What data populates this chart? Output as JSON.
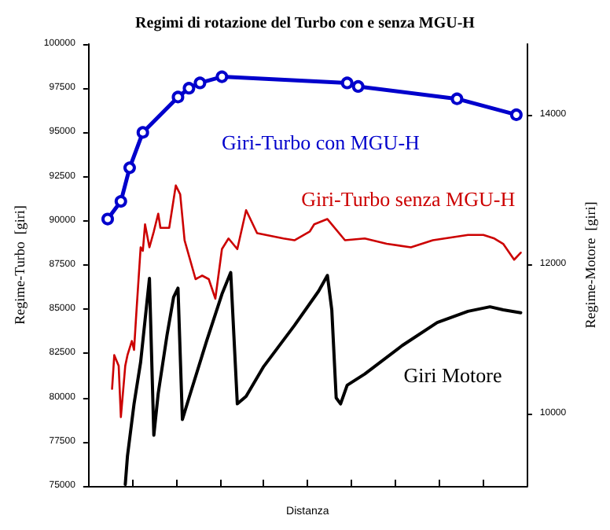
{
  "chart_data": {
    "type": "line",
    "title": "Regimi di rotazione del Turbo con e senza MGU-H",
    "xlabel": "Distanza",
    "ylabel": "Regime-Turbo  [giri]",
    "y2label": "Regime-Motore  [giri]",
    "categories": [
      null,
      null,
      null,
      null,
      null,
      null,
      null,
      null,
      null,
      null,
      null,
      null,
      null,
      null,
      null,
      null,
      null,
      null,
      null,
      null,
      null,
      null,
      null,
      null,
      null,
      null,
      null,
      null,
      null,
      null,
      null,
      null,
      null,
      null,
      null,
      null,
      null,
      null,
      null,
      null,
      null,
      null,
      null,
      null,
      null,
      null,
      null,
      null,
      null,
      null,
      null,
      null,
      null,
      null,
      null,
      null,
      null,
      null,
      null,
      null,
      null,
      null,
      null,
      null,
      null,
      null,
      null,
      null,
      null,
      null,
      null,
      null,
      null,
      null,
      null,
      null,
      null,
      null,
      null,
      null,
      null,
      null,
      null,
      null,
      null,
      null,
      null,
      null,
      null,
      null,
      null,
      null,
      null,
      null,
      null,
      null,
      null,
      null,
      null,
      null,
      null,
      null,
      null,
      null,
      null,
      null,
      null,
      null,
      null,
      null,
      null,
      null,
      null,
      null,
      null,
      null,
      null,
      null,
      null,
      null,
      null,
      null,
      null,
      null,
      null,
      null,
      null,
      null,
      null,
      null,
      null,
      null,
      null,
      null,
      null,
      null,
      null,
      null,
      null,
      null,
      null,
      null,
      null,
      null,
      null,
      null,
      null,
      null,
      null,
      null,
      null,
      null,
      null,
      null,
      null,
      null,
      null,
      null,
      null,
      null,
      null,
      null,
      null,
      null,
      null,
      null,
      null,
      null,
      null,
      null,
      null,
      null,
      null,
      null,
      null,
      null,
      null,
      null,
      null,
      null,
      null,
      null,
      null,
      null,
      null,
      null,
      null,
      null,
      null,
      null,
      null,
      null,
      null,
      null,
      null,
      null,
      null,
      null,
      null,
      null,
      null
    ],
    "ylim": [
      75000,
      100000
    ],
    "yticks": [
      75000,
      77500,
      80000,
      82500,
      85000,
      87500,
      90000,
      92500,
      95000,
      97500,
      100000
    ],
    "y2lim": [
      9030,
      14950
    ],
    "y2ticks": [
      10000,
      12000,
      14000
    ],
    "grid": false,
    "line_style": "solid",
    "series": [
      {
        "name": "Giri-Turbo con MGU-H",
        "color": "#0000cc",
        "marker": "circle",
        "values": [
          null,
          null,
          null,
          null,
          null,
          null,
          null,
          null,
          null,
          90100,
          null,
          null,
          null,
          null,
          null,
          91100,
          null,
          null,
          null,
          93000,
          null,
          null,
          null,
          null,
          null,
          95000,
          null,
          null,
          null,
          null,
          null,
          null,
          null,
          null,
          null,
          null,
          null,
          null,
          null,
          null,
          null,
          97000,
          null,
          null,
          null,
          null,
          97500,
          null,
          null,
          null,
          null,
          97800,
          null,
          null,
          null,
          null,
          null,
          null,
          null,
          null,
          null,
          98150,
          null,
          null,
          null,
          null,
          null,
          null,
          null,
          null,
          null,
          null,
          null,
          null,
          null,
          null,
          null,
          null,
          null,
          null,
          null,
          null,
          null,
          null,
          null,
          null,
          null,
          null,
          null,
          null,
          null,
          null,
          null,
          null,
          null,
          null,
          null,
          null,
          null,
          null,
          null,
          null,
          null,
          null,
          null,
          null,
          null,
          null,
          null,
          null,
          null,
          null,
          null,
          null,
          null,
          null,
          null,
          null,
          97800,
          null,
          null,
          null,
          null,
          97600,
          null,
          null,
          null,
          null,
          null,
          null,
          null,
          null,
          null,
          null,
          null,
          null,
          null,
          null,
          null,
          null,
          null,
          null,
          null,
          null,
          null,
          null,
          null,
          null,
          null,
          null,
          null,
          null,
          null,
          null,
          null,
          null,
          null,
          null,
          null,
          null,
          null,
          null,
          null,
          null,
          null,
          null,
          null,
          null,
          96900,
          null,
          null,
          null,
          null,
          null,
          null,
          null,
          null,
          null,
          null,
          null,
          null,
          null,
          null,
          null,
          null,
          null,
          null,
          null,
          null,
          null,
          null,
          null,
          null,
          null,
          null,
          96000,
          null,
          null,
          null,
          null,
          null
        ]
      },
      {
        "name": "Giri-Turbo senza MGU-H",
        "color": "#cc0000",
        "marker": "none",
        "values": [
          null,
          null,
          null,
          null,
          null,
          null,
          null,
          null,
          null,
          null,
          null,
          80500,
          82400,
          null,
          81800,
          78900,
          null,
          81800,
          82400,
          null,
          83200,
          82700,
          84700,
          null,
          88500,
          88300,
          89800,
          null,
          88500,
          null,
          89400,
          null,
          90400,
          89600,
          null,
          null,
          null,
          89600,
          null,
          null,
          92000,
          null,
          91500,
          null,
          88900,
          null,
          null,
          null,
          null,
          86700,
          null,
          null,
          86900,
          null,
          null,
          86700,
          null,
          null,
          85600,
          null,
          null,
          88400,
          null,
          null,
          89000,
          null,
          null,
          null,
          88400,
          null,
          null,
          null,
          90600,
          null,
          null,
          null,
          null,
          89300,
          null,
          null,
          null,
          null,
          null,
          null,
          null,
          null,
          null,
          null,
          null,
          89000,
          null,
          null,
          null,
          null,
          88900,
          null,
          null,
          null,
          null,
          null,
          null,
          89400,
          null,
          89800,
          null,
          null,
          null,
          null,
          null,
          90100,
          null,
          null,
          null,
          null,
          null,
          null,
          null,
          88900,
          null,
          null,
          null,
          null,
          null,
          null,
          null,
          null,
          89000,
          null,
          null,
          null,
          null,
          null,
          null,
          null,
          null,
          null,
          88700,
          null,
          null,
          null,
          null,
          null,
          null,
          null,
          null,
          null,
          null,
          88500,
          null,
          null,
          null,
          null,
          null,
          null,
          null,
          null,
          null,
          88900,
          null,
          null,
          null,
          null,
          null,
          null,
          null,
          null,
          null,
          null,
          null,
          null,
          null,
          null,
          null,
          89200,
          null,
          null,
          null,
          null,
          null,
          null,
          89200,
          null,
          null,
          null,
          null,
          89000,
          null,
          null,
          null,
          88700,
          null,
          null,
          null,
          null,
          87800,
          null,
          null,
          88200,
          null,
          null,
          null
        ]
      },
      {
        "name": "Giri Motore",
        "color": "#000000",
        "marker": "none",
        "axis": "y2",
        "values": [
          null,
          null,
          null,
          null,
          null,
          null,
          null,
          null,
          null,
          null,
          null,
          null,
          null,
          null,
          null,
          null,
          null,
          9050,
          9430,
          null,
          null,
          10130,
          null,
          null,
          10690,
          null,
          null,
          null,
          11810,
          null,
          9710,
          null,
          10270,
          null,
          null,
          null,
          11050,
          null,
          null,
          11560,
          null,
          11680,
          null,
          9920,
          null,
          null,
          10210,
          null,
          null,
          null,
          null,
          null,
          null,
          null,
          10970,
          null,
          null,
          null,
          null,
          null,
          null,
          11600,
          null,
          null,
          null,
          11890,
          null,
          null,
          10130,
          null,
          null,
          null,
          10230,
          null,
          null,
          null,
          null,
          null,
          null,
          null,
          10630,
          null,
          null,
          null,
          null,
          null,
          null,
          null,
          null,
          null,
          null,
          null,
          null,
          null,
          11180,
          null,
          null,
          null,
          null,
          null,
          null,
          null,
          null,
          null,
          null,
          11640,
          null,
          null,
          null,
          11850,
          null,
          11390,
          null,
          10210,
          null,
          10130,
          null,
          null,
          10380,
          null,
          null,
          null,
          null,
          null,
          null,
          null,
          10530,
          null,
          null,
          null,
          null,
          null,
          null,
          null,
          null,
          null,
          null,
          null,
          null,
          null,
          null,
          null,
          null,
          10910,
          null,
          null,
          null,
          null,
          null,
          null,
          null,
          null,
          null,
          null,
          null,
          null,
          null,
          null,
          null,
          11220,
          null,
          null,
          null,
          null,
          null,
          null,
          null,
          null,
          null,
          null,
          null,
          null,
          null,
          11370,
          null,
          null,
          null,
          null,
          null,
          null,
          null,
          null,
          null,
          11430,
          null,
          null,
          null,
          null,
          null,
          11390,
          null,
          null,
          null,
          null,
          null,
          null,
          null,
          11350,
          null,
          null,
          null
        ]
      }
    ]
  }
}
